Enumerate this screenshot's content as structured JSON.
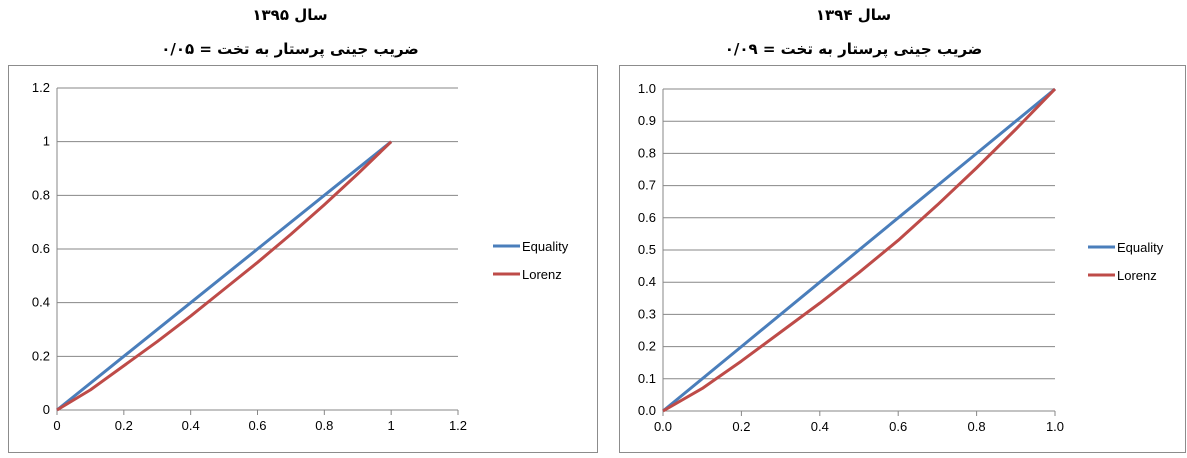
{
  "chart_data": [
    {
      "type": "line",
      "title": "سال ۱۳۹۵",
      "subtitle": "ضریب جینی پرستار به تخت = ۰/۰۵",
      "xlabel": "",
      "ylabel": "",
      "xlim": [
        0,
        1.2
      ],
      "ylim": [
        0,
        1.2
      ],
      "x_ticks": [
        "0",
        "0.2",
        "0.4",
        "0.6",
        "0.8",
        "1",
        "1.2"
      ],
      "y_ticks": [
        "0",
        "0.2",
        "0.4",
        "0.6",
        "0.8",
        "1",
        "1.2"
      ],
      "grid": "horizontal",
      "legend_position": "right",
      "series": [
        {
          "name": "Equality",
          "color": "#4a7ebb",
          "x": [
            0,
            0.2,
            0.4,
            0.6,
            0.8,
            1.0
          ],
          "y": [
            0,
            0.2,
            0.4,
            0.6,
            0.8,
            1.0
          ]
        },
        {
          "name": "Lorenz",
          "color": "#be4b48",
          "x": [
            0,
            0.1,
            0.2,
            0.3,
            0.4,
            0.5,
            0.6,
            0.7,
            0.8,
            0.9,
            1.0
          ],
          "y": [
            0,
            0.075,
            0.165,
            0.255,
            0.35,
            0.45,
            0.55,
            0.655,
            0.765,
            0.88,
            1.0
          ]
        }
      ]
    },
    {
      "type": "line",
      "title": "سال ۱۳۹۴",
      "subtitle": "ضریب جینی پرستار به تخت = ۰/۰۹",
      "xlabel": "",
      "ylabel": "",
      "xlim": [
        0,
        1.0
      ],
      "ylim": [
        0,
        1.0
      ],
      "x_ticks": [
        "0.0",
        "0.2",
        "0.4",
        "0.6",
        "0.8",
        "1.0"
      ],
      "y_ticks": [
        "0.0",
        "0.1",
        "0.2",
        "0.3",
        "0.4",
        "0.5",
        "0.6",
        "0.7",
        "0.8",
        "0.9",
        "1.0"
      ],
      "grid": "horizontal",
      "legend_position": "right",
      "series": [
        {
          "name": "Equality",
          "color": "#4a7ebb",
          "x": [
            0,
            0.2,
            0.4,
            0.6,
            0.8,
            1.0
          ],
          "y": [
            0,
            0.2,
            0.4,
            0.6,
            0.8,
            1.0
          ]
        },
        {
          "name": "Lorenz",
          "color": "#be4b48",
          "x": [
            0,
            0.1,
            0.2,
            0.3,
            0.4,
            0.5,
            0.6,
            0.7,
            0.8,
            0.9,
            1.0
          ],
          "y": [
            0,
            0.07,
            0.155,
            0.245,
            0.335,
            0.43,
            0.53,
            0.64,
            0.755,
            0.875,
            1.0
          ]
        }
      ]
    }
  ]
}
